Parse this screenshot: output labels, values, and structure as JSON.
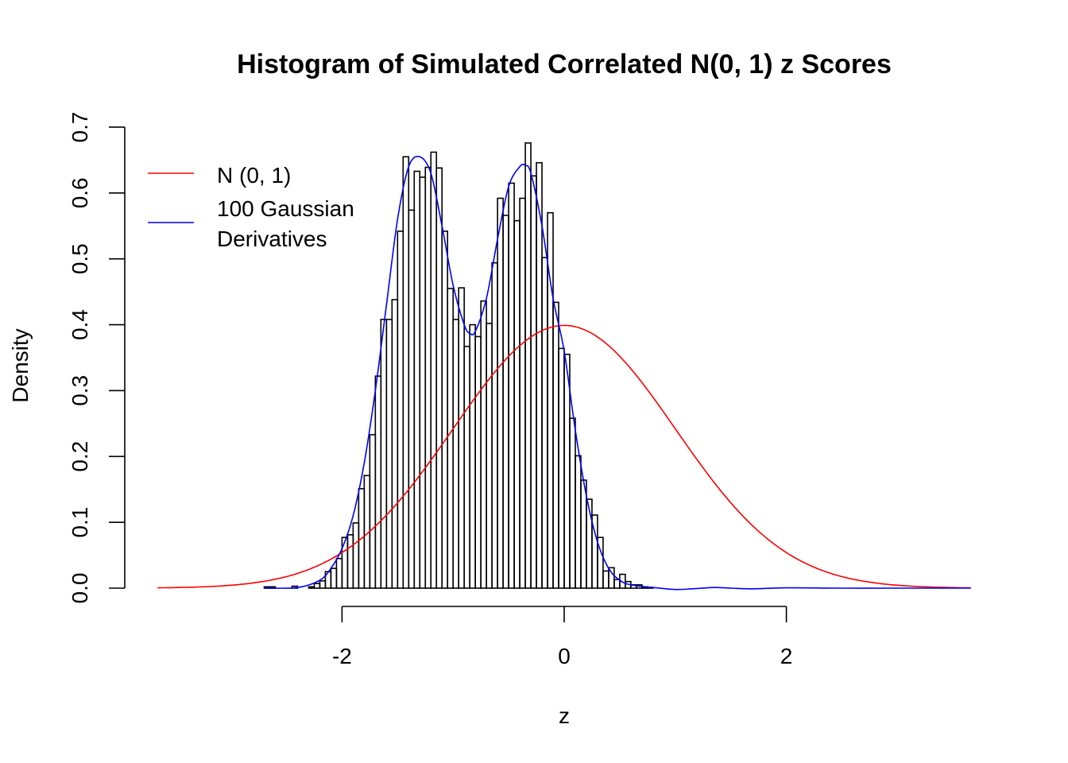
{
  "chart_data": {
    "type": "bar",
    "title": "Histogram of Simulated Correlated N(0, 1) z Scores",
    "xlabel": "z",
    "ylabel": "Density",
    "xlim": [
      -3.66,
      3.66
    ],
    "ylim": [
      0,
      0.7
    ],
    "x_ticks": [
      "-2",
      "0",
      "2"
    ],
    "x_tick_values": [
      -2,
      0,
      2
    ],
    "y_ticks": [
      "0.0",
      "0.1",
      "0.2",
      "0.3",
      "0.4",
      "0.5",
      "0.6",
      "0.7"
    ],
    "y_tick_values": [
      0,
      0.1,
      0.2,
      0.3,
      0.4,
      0.5,
      0.6,
      0.7
    ],
    "grid": false,
    "legend_placement": "top-left",
    "histogram": {
      "bin_width": 0.05,
      "bin_starts": [
        -2.7,
        -2.65,
        -2.6,
        -2.55,
        -2.5,
        -2.45,
        -2.4,
        -2.35,
        -2.3,
        -2.25,
        -2.2,
        -2.15,
        -2.1,
        -2.05,
        -2.0,
        -1.95,
        -1.9,
        -1.85,
        -1.8,
        -1.75,
        -1.7,
        -1.65,
        -1.6,
        -1.55,
        -1.5,
        -1.45,
        -1.4,
        -1.35,
        -1.3,
        -1.25,
        -1.2,
        -1.15,
        -1.1,
        -1.05,
        -1.0,
        -0.95,
        -0.9,
        -0.85,
        -0.8,
        -0.75,
        -0.7,
        -0.65,
        -0.6,
        -0.55,
        -0.5,
        -0.45,
        -0.4,
        -0.35,
        -0.3,
        -0.25,
        -0.2,
        -0.15,
        -0.1,
        -0.05,
        0.0,
        0.05,
        0.1,
        0.15,
        0.2,
        0.25,
        0.3,
        0.35,
        0.4,
        0.45,
        0.5,
        0.55,
        0.6,
        0.65,
        0.7,
        0.75
      ],
      "density": [
        0.002,
        0.002,
        0,
        0,
        0,
        0.003,
        0,
        0,
        0.002,
        0.007,
        0.011,
        0.025,
        0.03,
        0.045,
        0.077,
        0.081,
        0.099,
        0.151,
        0.171,
        0.233,
        0.322,
        0.408,
        0.408,
        0.438,
        0.542,
        0.655,
        0.574,
        0.633,
        0.624,
        0.639,
        0.662,
        0.638,
        0.542,
        0.455,
        0.408,
        0.456,
        0.367,
        0.4,
        0.382,
        0.436,
        0.402,
        0.494,
        0.592,
        0.566,
        0.615,
        0.558,
        0.592,
        0.676,
        0.626,
        0.646,
        0.502,
        0.57,
        0.434,
        0.364,
        0.355,
        0.258,
        0.201,
        0.164,
        0.135,
        0.111,
        0.077,
        0.026,
        0.031,
        0.013,
        0.021,
        0.01,
        0.005,
        0.005,
        0.002,
        0.001
      ]
    },
    "series": [
      {
        "name": "N (0, 1)",
        "type": "line",
        "color": "#ff0000",
        "function": "standard normal density",
        "x_range": [
          -3.66,
          3.66
        ]
      },
      {
        "name": "100 Gaussian Derivatives",
        "name_lines": [
          "100 Gaussian",
          "Derivatives"
        ],
        "type": "line",
        "color": "#0000ff",
        "x": [
          -2.7,
          -2.4,
          -2.2,
          -2.1,
          -2.0,
          -1.9,
          -1.8,
          -1.7,
          -1.6,
          -1.5,
          -1.4,
          -1.3,
          -1.2,
          -1.1,
          -1.0,
          -0.9,
          -0.85,
          -0.8,
          -0.7,
          -0.6,
          -0.5,
          -0.4,
          -0.35,
          -0.3,
          -0.2,
          -0.1,
          0.0,
          0.1,
          0.2,
          0.3,
          0.4,
          0.5,
          0.6,
          0.8,
          1.0,
          1.15,
          1.35,
          1.5,
          1.7,
          2.0,
          2.5,
          3.0,
          3.66
        ],
        "y": [
          0,
          0.001,
          0.012,
          0.03,
          0.06,
          0.11,
          0.19,
          0.3,
          0.43,
          0.56,
          0.64,
          0.655,
          0.63,
          0.55,
          0.46,
          0.4,
          0.387,
          0.39,
          0.44,
          0.53,
          0.61,
          0.64,
          0.642,
          0.63,
          0.55,
          0.44,
          0.36,
          0.24,
          0.14,
          0.07,
          0.03,
          0.012,
          0.005,
          0.001,
          -0.002,
          -0.001,
          0.001,
          0,
          -0.001,
          0.0005,
          0,
          0,
          0
        ]
      }
    ]
  }
}
